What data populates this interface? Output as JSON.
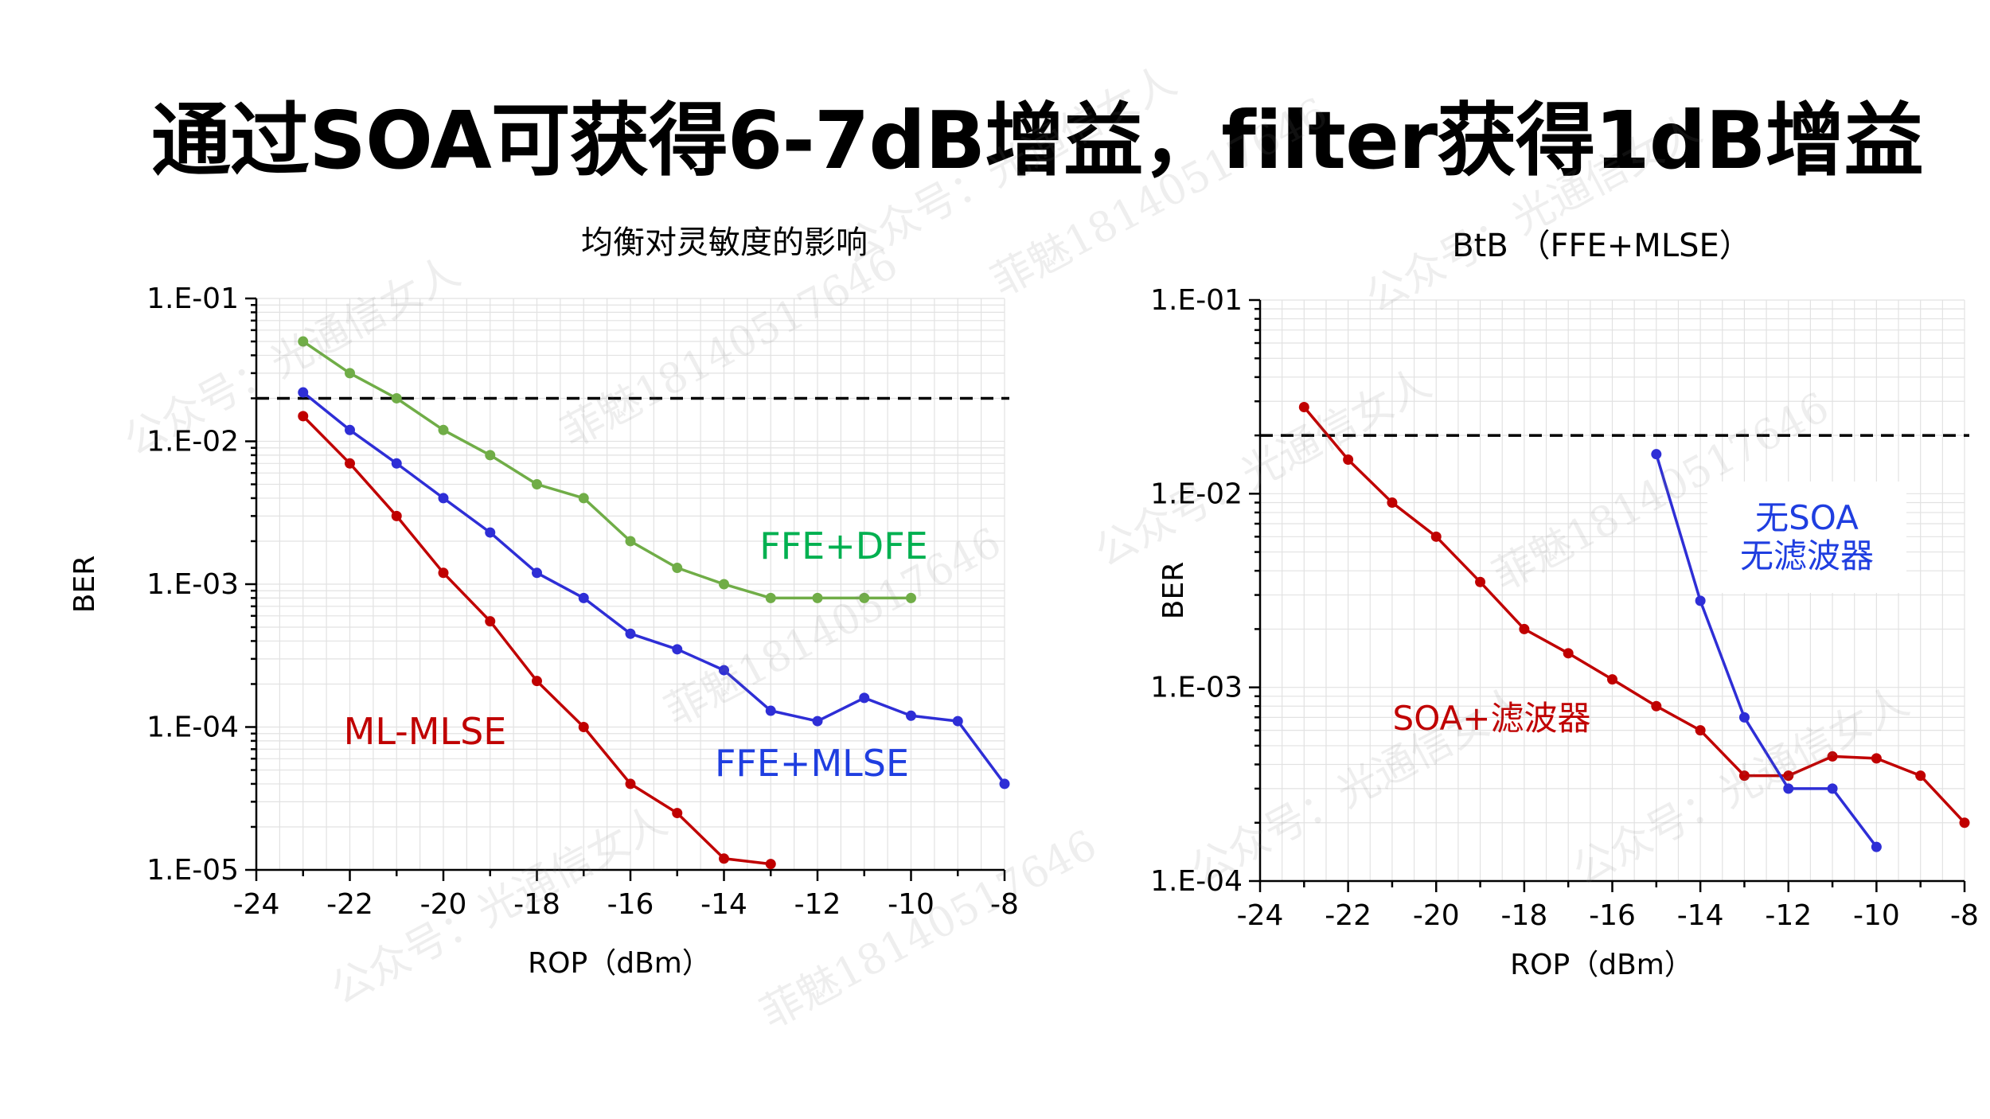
{
  "slide": {
    "title": "通过SOA可获得6-7dB增益，filter获得1dB增益"
  },
  "watermarks": [
    {
      "text": "公众号：光通信女人"
    },
    {
      "text": "菲魅18140517646"
    },
    {
      "text": "公众号：光通信女人"
    },
    {
      "text": "菲魅18140517646"
    },
    {
      "text": "公众号：光通信女人"
    },
    {
      "text": "菲魅18140517646"
    },
    {
      "text": "公众号：光通信女人"
    },
    {
      "text": "菲魅18140517646"
    },
    {
      "text": "公众号：光通信女人"
    },
    {
      "text": "菲魅18140517646"
    },
    {
      "text": "公众号：光通信女人"
    },
    {
      "text": "公众号：光通信女人"
    }
  ],
  "chart_data": [
    {
      "type": "line",
      "title": "均衡对灵敏度的影响",
      "xlabel": "ROP（dBm）",
      "ylabel": "BER",
      "xlim": [
        -24,
        -8
      ],
      "ylim": [
        1e-05,
        0.1
      ],
      "yscale": "log",
      "x_ticks": [
        "-24",
        "-22",
        "-20",
        "-18",
        "-16",
        "-14",
        "-12",
        "-10",
        "-8"
      ],
      "y_ticks": [
        "1.E-01",
        "1.E-02",
        "1.E-03",
        "1.E-04",
        "1.E-05"
      ],
      "grid": true,
      "threshold": 0.02,
      "series": [
        {
          "name": "FFE+DFE",
          "color": "#70ad47",
          "label_color": "#00b050",
          "x": [
            -23,
            -22,
            -21,
            -20,
            -19,
            -18,
            -17,
            -16,
            -15,
            -14,
            -13,
            -12,
            -11,
            -10
          ],
          "y": [
            0.05,
            0.03,
            0.02,
            0.012,
            0.008,
            0.005,
            0.004,
            0.002,
            0.0013,
            0.001,
            0.0008,
            0.0008,
            0.0008,
            0.0008
          ]
        },
        {
          "name": "FFE+MLSE",
          "color": "#2e2ed6",
          "label_color": "#1f3ee0",
          "x": [
            -23,
            -22,
            -21,
            -20,
            -19,
            -18,
            -17,
            -16,
            -15,
            -14,
            -13,
            -12,
            -11,
            -10,
            -9,
            -8
          ],
          "y": [
            0.022,
            0.012,
            0.007,
            0.004,
            0.0023,
            0.0012,
            0.0008,
            0.00045,
            0.00035,
            0.00025,
            0.00013,
            0.00011,
            0.00016,
            0.00012,
            0.00011,
            4e-05
          ]
        },
        {
          "name": "ML-MLSE",
          "color": "#c00000",
          "label_color": "#c00000",
          "x": [
            -23,
            -22,
            -21,
            -20,
            -19,
            -18,
            -17,
            -16,
            -15,
            -14,
            -13
          ],
          "y": [
            0.015,
            0.007,
            0.003,
            0.0012,
            0.00055,
            0.00021,
            0.0001,
            4e-05,
            2.5e-05,
            1.2e-05,
            1.1e-05
          ]
        }
      ]
    },
    {
      "type": "line",
      "title": "BtB （FFE+MLSE）",
      "xlabel": "ROP（dBm）",
      "ylabel": "BER",
      "xlim": [
        -24,
        -8
      ],
      "ylim": [
        0.0001,
        0.1
      ],
      "yscale": "log",
      "x_ticks": [
        "-24",
        "-22",
        "-20",
        "-18",
        "-16",
        "-14",
        "-12",
        "-10",
        "-8"
      ],
      "y_ticks": [
        "1.E-01",
        "1.E-02",
        "1.E-03",
        "1.E-04"
      ],
      "grid": true,
      "threshold": 0.02,
      "series": [
        {
          "name": "SOA+滤波器",
          "color": "#c00000",
          "label_color": "#c00000",
          "x": [
            -23,
            -22,
            -21,
            -20,
            -19,
            -18,
            -17,
            -16,
            -15,
            -14,
            -13,
            -12,
            -11,
            -10,
            -9,
            -8
          ],
          "y": [
            0.028,
            0.015,
            0.009,
            0.006,
            0.0035,
            0.002,
            0.0015,
            0.0011,
            0.0008,
            0.0006,
            0.00035,
            0.00035,
            0.00044,
            0.00043,
            0.00035,
            0.0002
          ]
        },
        {
          "name": "无SOA\n无滤波器",
          "label_lines": [
            "无SOA",
            "无滤波器"
          ],
          "color": "#2e2ed6",
          "label_color": "#1f3ee0",
          "x": [
            -15,
            -14,
            -13,
            -12,
            -11,
            -10
          ],
          "y": [
            0.016,
            0.0028,
            0.0007,
            0.0003,
            0.0003,
            0.00015
          ]
        }
      ]
    }
  ]
}
